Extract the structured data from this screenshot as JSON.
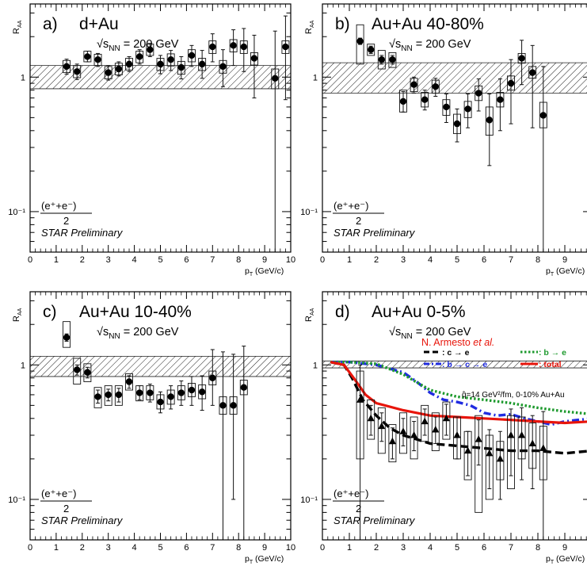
{
  "chart_data": [
    {
      "type": "scatter",
      "panel_label": "a)",
      "system": "d+Au",
      "energy_prefix": "√s",
      "energy_sub": "NN",
      "energy_suffix": " = 200 GeV",
      "ylabel_main": "R",
      "ylabel_sub": "AA",
      "xlabel_main": "p",
      "xlabel_sub": "T",
      "xlabel_unit": " (GeV/c)",
      "frac_num": "(e⁺+e⁻)",
      "frac_den": "2",
      "preliminary": "STAR Preliminary",
      "xlim": [
        0,
        10
      ],
      "ylim": [
        0.05,
        3.5
      ],
      "y_scale": "log",
      "x_ticks": [
        "0",
        "1",
        "2",
        "3",
        "4",
        "5",
        "6",
        "7",
        "8",
        "9",
        "10"
      ],
      "y_ticks": [
        "10⁻¹",
        "1"
      ],
      "norm_band": [
        0.82,
        1.22
      ],
      "marker": "circle",
      "points": [
        {
          "x": 1.4,
          "y": 1.2,
          "ylo": 1.05,
          "yhi": 1.36,
          "sys": [
            1.08,
            1.33
          ]
        },
        {
          "x": 1.8,
          "y": 1.1,
          "ylo": 0.96,
          "yhi": 1.25,
          "sys": [
            0.99,
            1.22
          ]
        },
        {
          "x": 2.2,
          "y": 1.42,
          "ylo": 1.3,
          "yhi": 1.56,
          "sys": [
            1.3,
            1.56
          ]
        },
        {
          "x": 2.6,
          "y": 1.35,
          "ylo": 1.2,
          "yhi": 1.5,
          "sys": [
            1.22,
            1.48
          ]
        },
        {
          "x": 3.0,
          "y": 1.08,
          "ylo": 0.95,
          "yhi": 1.22,
          "sys": [
            0.97,
            1.2
          ]
        },
        {
          "x": 3.4,
          "y": 1.15,
          "ylo": 1.02,
          "yhi": 1.3,
          "sys": [
            1.04,
            1.27
          ]
        },
        {
          "x": 3.8,
          "y": 1.25,
          "ylo": 1.1,
          "yhi": 1.42,
          "sys": [
            1.13,
            1.38
          ]
        },
        {
          "x": 4.2,
          "y": 1.42,
          "ylo": 1.25,
          "yhi": 1.6,
          "sys": [
            1.28,
            1.56
          ]
        },
        {
          "x": 4.6,
          "y": 1.6,
          "ylo": 1.42,
          "yhi": 1.78,
          "sys": [
            1.45,
            1.76
          ]
        },
        {
          "x": 5.0,
          "y": 1.25,
          "ylo": 1.06,
          "yhi": 1.45,
          "sys": [
            1.12,
            1.38
          ]
        },
        {
          "x": 5.4,
          "y": 1.35,
          "ylo": 1.12,
          "yhi": 1.58,
          "sys": [
            1.21,
            1.49
          ]
        },
        {
          "x": 5.8,
          "y": 1.18,
          "ylo": 0.97,
          "yhi": 1.42,
          "sys": [
            1.05,
            1.31
          ]
        },
        {
          "x": 6.2,
          "y": 1.45,
          "ylo": 1.2,
          "yhi": 1.72,
          "sys": [
            1.3,
            1.6
          ]
        },
        {
          "x": 6.6,
          "y": 1.25,
          "ylo": 0.98,
          "yhi": 1.58,
          "sys": [
            1.12,
            1.38
          ]
        },
        {
          "x": 7.0,
          "y": 1.68,
          "ylo": 1.3,
          "yhi": 2.1,
          "sys": [
            1.5,
            1.86
          ]
        },
        {
          "x": 7.4,
          "y": 1.2,
          "ylo": 0.85,
          "yhi": 1.6,
          "sys": [
            1.07,
            1.33
          ]
        },
        {
          "x": 7.8,
          "y": 1.72,
          "ylo": 1.22,
          "yhi": 2.25,
          "sys": [
            1.54,
            1.9
          ]
        },
        {
          "x": 8.2,
          "y": 1.68,
          "ylo": 1.1,
          "yhi": 2.3,
          "sys": [
            1.5,
            1.86
          ]
        },
        {
          "x": 8.6,
          "y": 1.38,
          "ylo": 0.7,
          "yhi": 2.05,
          "sys": [
            1.23,
            1.52
          ]
        },
        {
          "x": 9.4,
          "y": 0.98,
          "ylo": 0.05,
          "yhi": 2.2,
          "sys": [
            0.82,
            1.15
          ]
        },
        {
          "x": 9.8,
          "y": 1.68,
          "ylo": 0.68,
          "yhi": 2.85,
          "sys": [
            1.5,
            1.86
          ]
        }
      ]
    },
    {
      "type": "scatter",
      "panel_label": "b)",
      "system": "Au+Au 40-80%",
      "energy_prefix": "√s",
      "energy_sub": "NN",
      "energy_suffix": " = 200 GeV",
      "ylabel_main": "R",
      "ylabel_sub": "AA",
      "xlabel_main": "p",
      "xlabel_sub": "T",
      "xlabel_unit": " (GeV/c)",
      "frac_num": "(e⁺+e⁻)",
      "frac_den": "2",
      "preliminary": "STAR Preliminary",
      "xlim": [
        0,
        10
      ],
      "ylim": [
        0.05,
        3.5
      ],
      "y_scale": "log",
      "x_ticks": [
        "0",
        "1",
        "2",
        "3",
        "4",
        "5",
        "6",
        "7",
        "8",
        "9",
        "10"
      ],
      "y_ticks": [
        "10⁻¹",
        "1"
      ],
      "norm_band": [
        0.76,
        1.28
      ],
      "marker": "circle",
      "points": [
        {
          "x": 1.4,
          "y": 1.85,
          "ylo": 1.75,
          "yhi": 1.95,
          "sys": [
            1.25,
            2.45
          ]
        },
        {
          "x": 1.8,
          "y": 1.6,
          "ylo": 1.5,
          "yhi": 1.7,
          "sys": [
            1.45,
            1.76
          ]
        },
        {
          "x": 2.2,
          "y": 1.35,
          "ylo": 1.25,
          "yhi": 1.45,
          "sys": [
            1.15,
            1.58
          ]
        },
        {
          "x": 2.6,
          "y": 1.35,
          "ylo": 1.25,
          "yhi": 1.45,
          "sys": [
            1.18,
            1.52
          ]
        },
        {
          "x": 3.0,
          "y": 0.66,
          "ylo": 0.55,
          "yhi": 0.78,
          "sys": [
            0.55,
            0.8
          ]
        },
        {
          "x": 3.4,
          "y": 0.88,
          "ylo": 0.76,
          "yhi": 1.0,
          "sys": [
            0.78,
            0.98
          ]
        },
        {
          "x": 3.8,
          "y": 0.68,
          "ylo": 0.57,
          "yhi": 0.8,
          "sys": [
            0.6,
            0.77
          ]
        },
        {
          "x": 4.2,
          "y": 0.85,
          "ylo": 0.72,
          "yhi": 0.98,
          "sys": [
            0.76,
            0.95
          ]
        },
        {
          "x": 4.6,
          "y": 0.6,
          "ylo": 0.46,
          "yhi": 0.75,
          "sys": [
            0.52,
            0.68
          ]
        },
        {
          "x": 5.0,
          "y": 0.45,
          "ylo": 0.33,
          "yhi": 0.58,
          "sys": [
            0.38,
            0.53
          ]
        },
        {
          "x": 5.4,
          "y": 0.58,
          "ylo": 0.42,
          "yhi": 0.75,
          "sys": [
            0.5,
            0.66
          ]
        },
        {
          "x": 5.8,
          "y": 0.76,
          "ylo": 0.56,
          "yhi": 0.97,
          "sys": [
            0.67,
            0.86
          ]
        },
        {
          "x": 6.2,
          "y": 0.48,
          "ylo": 0.22,
          "yhi": 0.75,
          "sys": [
            0.37,
            0.6
          ]
        },
        {
          "x": 6.6,
          "y": 0.68,
          "ylo": 0.4,
          "yhi": 0.97,
          "sys": [
            0.6,
            0.77
          ]
        },
        {
          "x": 7.0,
          "y": 0.9,
          "ylo": 0.45,
          "yhi": 1.35,
          "sys": [
            0.8,
            1.02
          ]
        },
        {
          "x": 7.4,
          "y": 1.38,
          "ylo": 0.88,
          "yhi": 1.88,
          "sys": [
            1.27,
            1.5
          ]
        },
        {
          "x": 7.8,
          "y": 1.08,
          "ylo": 0.42,
          "yhi": 1.72,
          "sys": [
            0.98,
            1.2
          ]
        },
        {
          "x": 8.2,
          "y": 0.52,
          "ylo": 0.05,
          "yhi": 1.2,
          "sys": [
            0.42,
            0.65
          ]
        }
      ]
    },
    {
      "type": "scatter",
      "panel_label": "c)",
      "system": "Au+Au 10-40%",
      "energy_prefix": "√s",
      "energy_sub": "NN",
      "energy_suffix": " = 200 GeV",
      "ylabel_main": "R",
      "ylabel_sub": "AA",
      "xlabel_main": "p",
      "xlabel_sub": "T",
      "xlabel_unit": " (GeV/c)",
      "frac_num": "(e⁺+e⁻)",
      "frac_den": "2",
      "preliminary": "STAR Preliminary",
      "xlim": [
        0,
        10
      ],
      "ylim": [
        0.05,
        3.5
      ],
      "y_scale": "log",
      "x_ticks": [
        "0",
        "1",
        "2",
        "3",
        "4",
        "5",
        "6",
        "7",
        "8",
        "9",
        "10"
      ],
      "y_ticks": [
        "10⁻¹",
        "1"
      ],
      "norm_band": [
        0.82,
        1.16
      ],
      "marker": "circle",
      "points": [
        {
          "x": 1.4,
          "y": 1.6,
          "ylo": 1.5,
          "yhi": 1.7,
          "sys": [
            1.35,
            2.1
          ]
        },
        {
          "x": 1.8,
          "y": 0.92,
          "ylo": 0.84,
          "yhi": 1.0,
          "sys": [
            0.72,
            1.12
          ]
        },
        {
          "x": 2.2,
          "y": 0.88,
          "ylo": 0.8,
          "yhi": 0.96,
          "sys": [
            0.75,
            1.02
          ]
        },
        {
          "x": 2.6,
          "y": 0.58,
          "ylo": 0.52,
          "yhi": 0.65,
          "sys": [
            0.48,
            0.68
          ]
        },
        {
          "x": 3.0,
          "y": 0.6,
          "ylo": 0.54,
          "yhi": 0.66,
          "sys": [
            0.5,
            0.7
          ]
        },
        {
          "x": 3.4,
          "y": 0.6,
          "ylo": 0.53,
          "yhi": 0.67,
          "sys": [
            0.5,
            0.7
          ]
        },
        {
          "x": 3.8,
          "y": 0.75,
          "ylo": 0.67,
          "yhi": 0.83,
          "sys": [
            0.65,
            0.86
          ]
        },
        {
          "x": 4.2,
          "y": 0.62,
          "ylo": 0.55,
          "yhi": 0.7,
          "sys": [
            0.54,
            0.7
          ]
        },
        {
          "x": 4.6,
          "y": 0.62,
          "ylo": 0.53,
          "yhi": 0.72,
          "sys": [
            0.55,
            0.7
          ]
        },
        {
          "x": 5.0,
          "y": 0.53,
          "ylo": 0.44,
          "yhi": 0.63,
          "sys": [
            0.47,
            0.6
          ]
        },
        {
          "x": 5.4,
          "y": 0.58,
          "ylo": 0.47,
          "yhi": 0.7,
          "sys": [
            0.51,
            0.65
          ]
        },
        {
          "x": 5.8,
          "y": 0.62,
          "ylo": 0.5,
          "yhi": 0.76,
          "sys": [
            0.55,
            0.7
          ]
        },
        {
          "x": 6.2,
          "y": 0.65,
          "ylo": 0.5,
          "yhi": 0.82,
          "sys": [
            0.58,
            0.73
          ]
        },
        {
          "x": 6.6,
          "y": 0.63,
          "ylo": 0.46,
          "yhi": 0.83,
          "sys": [
            0.56,
            0.71
          ]
        },
        {
          "x": 7.0,
          "y": 0.8,
          "ylo": 0.5,
          "yhi": 1.3,
          "sys": [
            0.71,
            0.9
          ]
        },
        {
          "x": 7.4,
          "y": 0.5,
          "ylo": 0.05,
          "yhi": 1.25,
          "sys": [
            0.43,
            0.58
          ]
        },
        {
          "x": 7.8,
          "y": 0.5,
          "ylo": 0.1,
          "yhi": 1.2,
          "sys": [
            0.43,
            0.58
          ]
        },
        {
          "x": 8.2,
          "y": 0.68,
          "ylo": 0.05,
          "yhi": 1.38,
          "sys": [
            0.6,
            0.77
          ]
        }
      ]
    },
    {
      "type": "scatter",
      "panel_label": "d)",
      "system": "Au+Au 0-5%",
      "energy_prefix": "√s",
      "energy_sub": "NN",
      "energy_suffix": " = 200 GeV",
      "ylabel_main": "R",
      "ylabel_sub": "AA",
      "xlabel_main": "p",
      "xlabel_sub": "T",
      "xlabel_unit": " (GeV/c)",
      "frac_num": "(e⁺+e⁻)",
      "frac_den": "2",
      "preliminary": "STAR Preliminary",
      "xlim": [
        0,
        10
      ],
      "ylim": [
        0.05,
        3.5
      ],
      "y_scale": "log",
      "x_ticks": [
        "0",
        "1",
        "2",
        "3",
        "4",
        "5",
        "6",
        "7",
        "8",
        "9",
        "10"
      ],
      "y_ticks": [
        "10⁻¹",
        "1"
      ],
      "norm_band": [
        0.95,
        1.07
      ],
      "marker": "triangle",
      "theory": {
        "author": "N. Armesto",
        "etal": " et al.",
        "qhat_note": "q̂=14 GeV²/fm, 0-10% Au+Au",
        "legend": [
          {
            "label": ": c → e",
            "color": "#000000"
          },
          {
            "label": ": b → c → e",
            "color": "#1f2be0"
          },
          {
            "label": ": b → e",
            "color": "#1e9a2e"
          },
          {
            "label": ": total",
            "color": "#e8150b"
          }
        ],
        "curves": [
          {
            "name": "c → e",
            "color": "#000000",
            "x": [
              0.3,
              0.8,
              1.1,
              1.5,
              2.0,
              2.5,
              3.0,
              3.5,
              4.0,
              5.0,
              6.0,
              7.0,
              8.0,
              9.0,
              10.0
            ],
            "y": [
              1.05,
              1.0,
              0.8,
              0.55,
              0.42,
              0.34,
              0.3,
              0.28,
              0.26,
              0.25,
              0.24,
              0.23,
              0.23,
              0.22,
              0.23
            ]
          },
          {
            "name": "b → c → e",
            "color": "#1f2be0",
            "x": [
              0.3,
              1.0,
              2.0,
              3.0,
              3.5,
              4.0,
              4.5,
              5.0,
              5.5,
              6.0,
              6.5,
              7.0,
              7.5,
              8.0,
              8.5,
              9.0,
              10.0
            ],
            "y": [
              1.05,
              1.05,
              1.0,
              0.88,
              0.75,
              0.62,
              0.55,
              0.53,
              0.5,
              0.44,
              0.42,
              0.43,
              0.4,
              0.38,
              0.36,
              0.38,
              0.4
            ]
          },
          {
            "name": "b → e",
            "color": "#1e9a2e",
            "x": [
              0.3,
              1.0,
              2.0,
              3.0,
              4.0,
              5.0,
              6.0,
              7.0,
              8.0,
              9.0,
              10.0
            ],
            "y": [
              1.05,
              1.05,
              1.02,
              0.85,
              0.65,
              0.58,
              0.55,
              0.52,
              0.48,
              0.45,
              0.43
            ]
          },
          {
            "name": "total",
            "color": "#e8150b",
            "x": [
              0.3,
              0.8,
              1.2,
              1.6,
              2.0,
              3.0,
              4.0,
              5.0,
              6.0,
              7.0,
              8.0,
              9.0,
              10.0
            ],
            "y": [
              1.05,
              1.0,
              0.78,
              0.6,
              0.52,
              0.46,
              0.42,
              0.41,
              0.4,
              0.39,
              0.38,
              0.37,
              0.38
            ]
          }
        ]
      },
      "points": [
        {
          "x": 1.4,
          "y": 0.55,
          "ylo": 0.05,
          "yhi": 1.0,
          "sys": [
            0.2,
            0.9
          ]
        },
        {
          "x": 1.8,
          "y": 0.4,
          "ylo": 0.3,
          "yhi": 0.5,
          "sys": [
            0.28,
            0.55
          ]
        },
        {
          "x": 2.2,
          "y": 0.35,
          "ylo": 0.27,
          "yhi": 0.44,
          "sys": [
            0.22,
            0.48
          ]
        },
        {
          "x": 2.6,
          "y": 0.27,
          "ylo": 0.2,
          "yhi": 0.34,
          "sys": [
            0.19,
            0.36
          ]
        },
        {
          "x": 3.0,
          "y": 0.32,
          "ylo": 0.25,
          "yhi": 0.4,
          "sys": [
            0.22,
            0.44
          ]
        },
        {
          "x": 3.4,
          "y": 0.3,
          "ylo": 0.23,
          "yhi": 0.38,
          "sys": [
            0.2,
            0.41
          ]
        },
        {
          "x": 3.8,
          "y": 0.38,
          "ylo": 0.3,
          "yhi": 0.47,
          "sys": [
            0.27,
            0.5
          ]
        },
        {
          "x": 4.2,
          "y": 0.33,
          "ylo": 0.26,
          "yhi": 0.41,
          "sys": [
            0.23,
            0.44
          ]
        },
        {
          "x": 4.6,
          "y": 0.4,
          "ylo": 0.3,
          "yhi": 0.51,
          "sys": [
            0.28,
            0.53
          ]
        },
        {
          "x": 5.0,
          "y": 0.3,
          "ylo": 0.2,
          "yhi": 0.41,
          "sys": [
            0.2,
            0.41
          ]
        },
        {
          "x": 5.4,
          "y": 0.23,
          "ylo": 0.15,
          "yhi": 0.32,
          "sys": [
            0.14,
            0.32
          ]
        },
        {
          "x": 5.8,
          "y": 0.28,
          "ylo": 0.18,
          "yhi": 0.39,
          "sys": [
            0.08,
            0.42
          ]
        },
        {
          "x": 6.2,
          "y": 0.22,
          "ylo": 0.12,
          "yhi": 0.33,
          "sys": [
            0.1,
            0.3
          ]
        },
        {
          "x": 6.6,
          "y": 0.2,
          "ylo": 0.1,
          "yhi": 0.32,
          "sys": [
            0.14,
            0.27
          ]
        },
        {
          "x": 7.0,
          "y": 0.3,
          "ylo": 0.15,
          "yhi": 0.47,
          "sys": [
            0.12,
            0.42
          ]
        },
        {
          "x": 7.4,
          "y": 0.3,
          "ylo": 0.14,
          "yhi": 0.48,
          "sys": [
            0.2,
            0.41
          ]
        },
        {
          "x": 7.8,
          "y": 0.26,
          "ylo": 0.12,
          "yhi": 0.42,
          "sys": [
            0.17,
            0.37
          ]
        },
        {
          "x": 8.2,
          "y": 0.24,
          "ylo": 0.05,
          "yhi": 0.45,
          "sys": [
            0.14,
            0.35
          ]
        }
      ]
    }
  ]
}
